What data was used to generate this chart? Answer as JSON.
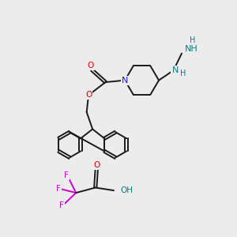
{
  "background_color": "#ececec",
  "bond_color": "#1a1a1a",
  "oxygen_color": "#e00000",
  "nitrogen_color": "#2020cc",
  "nitrogen_nh_color": "#008080",
  "fluorine_color": "#cc00cc",
  "lw": 1.4,
  "dbo": 0.055,
  "xlim": [
    0,
    10
  ],
  "ylim": [
    0,
    10
  ]
}
